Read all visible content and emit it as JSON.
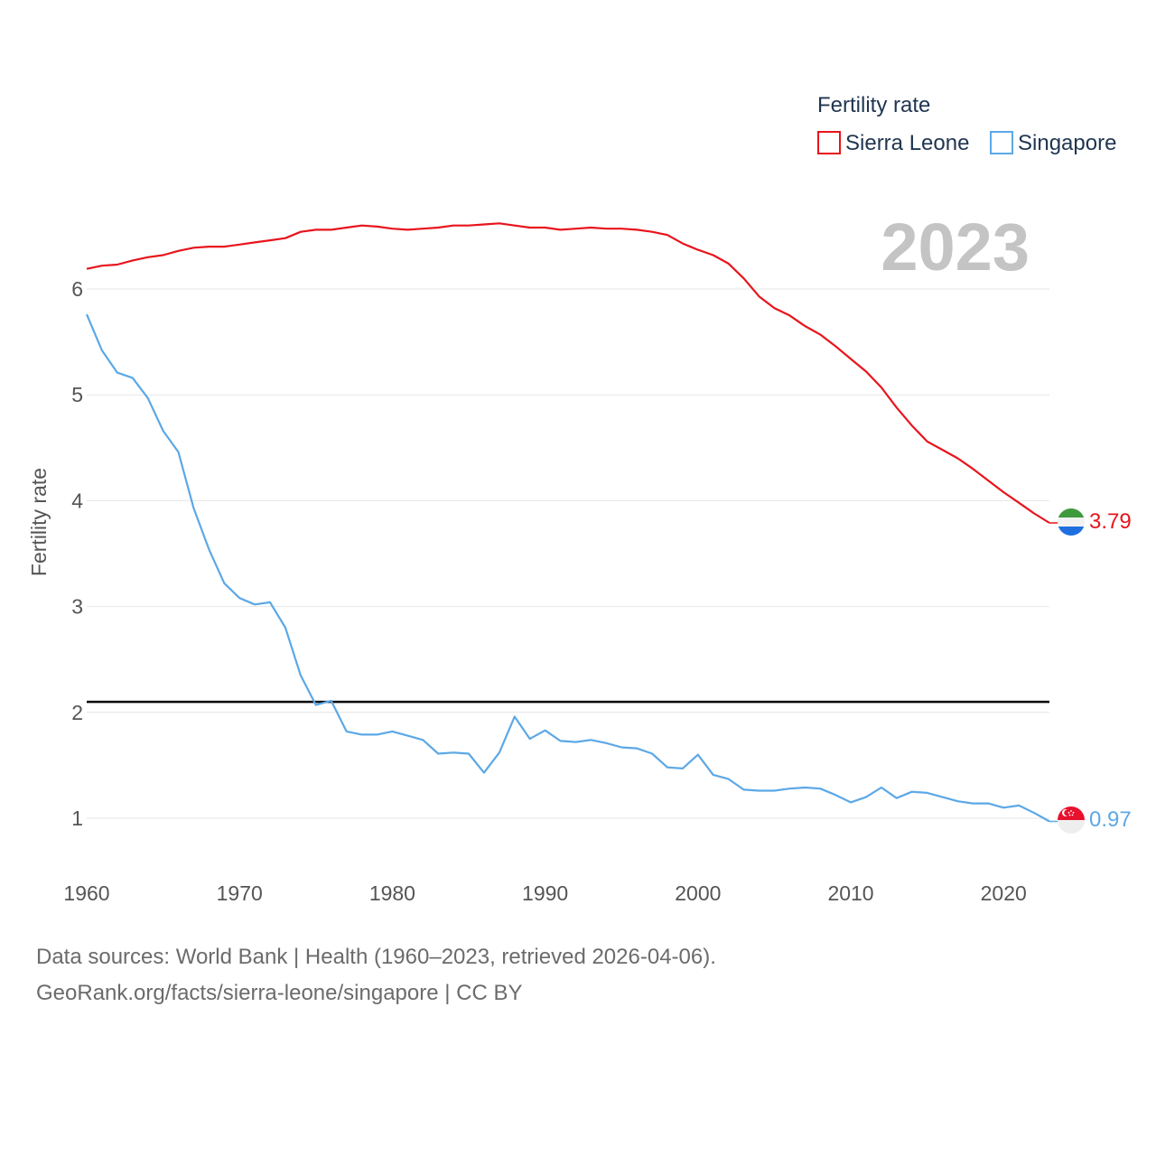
{
  "chart_data": {
    "type": "line",
    "title": "",
    "year_label": "2023",
    "ylabel": "Fertility rate",
    "xlabel": "",
    "xlim": [
      1960,
      2023
    ],
    "ylim": [
      0.65,
      6.7
    ],
    "x_ticks": [
      1960,
      1970,
      1980,
      1990,
      2000,
      2010,
      2020
    ],
    "y_ticks": [
      1,
      2,
      3,
      4,
      5,
      6
    ],
    "grid": true,
    "legend": {
      "title": "Fertility rate",
      "placement": "top-right"
    },
    "reference_line": {
      "y": 2.1,
      "color": "#000000"
    },
    "x": [
      1960,
      1961,
      1962,
      1963,
      1964,
      1965,
      1966,
      1967,
      1968,
      1969,
      1970,
      1971,
      1972,
      1973,
      1974,
      1975,
      1976,
      1977,
      1978,
      1979,
      1980,
      1981,
      1982,
      1983,
      1984,
      1985,
      1986,
      1987,
      1988,
      1989,
      1990,
      1991,
      1992,
      1993,
      1994,
      1995,
      1996,
      1997,
      1998,
      1999,
      2000,
      2001,
      2002,
      2003,
      2004,
      2005,
      2006,
      2007,
      2008,
      2009,
      2010,
      2011,
      2012,
      2013,
      2014,
      2015,
      2016,
      2017,
      2018,
      2019,
      2020,
      2021,
      2022,
      2023
    ],
    "series": [
      {
        "name": "Sierra Leone",
        "color": "#e8141c",
        "end_label": "3.79",
        "flag": "sierra-leone-flag-icon",
        "values": [
          6.19,
          6.22,
          6.23,
          6.27,
          6.3,
          6.32,
          6.36,
          6.39,
          6.4,
          6.4,
          6.42,
          6.44,
          6.46,
          6.48,
          6.54,
          6.56,
          6.56,
          6.58,
          6.6,
          6.59,
          6.57,
          6.56,
          6.57,
          6.58,
          6.6,
          6.6,
          6.61,
          6.62,
          6.6,
          6.58,
          6.58,
          6.56,
          6.57,
          6.58,
          6.57,
          6.57,
          6.56,
          6.54,
          6.51,
          6.43,
          6.37,
          6.32,
          6.24,
          6.1,
          5.93,
          5.82,
          5.75,
          5.65,
          5.57,
          5.46,
          5.34,
          5.22,
          5.07,
          4.88,
          4.71,
          4.56,
          4.48,
          4.4,
          4.3,
          4.19,
          4.08,
          3.98,
          3.88,
          3.79
        ]
      },
      {
        "name": "Singapore",
        "color": "#5ca8e6",
        "end_label": "0.97",
        "flag": "singapore-flag-icon",
        "values": [
          5.76,
          5.42,
          5.21,
          5.16,
          4.97,
          4.66,
          4.46,
          3.93,
          3.54,
          3.22,
          3.08,
          3.02,
          3.04,
          2.8,
          2.35,
          2.07,
          2.11,
          1.82,
          1.79,
          1.79,
          1.82,
          1.78,
          1.74,
          1.61,
          1.62,
          1.61,
          1.43,
          1.62,
          1.96,
          1.75,
          1.83,
          1.73,
          1.72,
          1.74,
          1.71,
          1.67,
          1.66,
          1.61,
          1.48,
          1.47,
          1.6,
          1.41,
          1.37,
          1.27,
          1.26,
          1.26,
          1.28,
          1.29,
          1.28,
          1.22,
          1.15,
          1.2,
          1.29,
          1.19,
          1.25,
          1.24,
          1.2,
          1.16,
          1.14,
          1.14,
          1.1,
          1.12,
          1.05,
          0.97
        ]
      }
    ]
  },
  "footer": {
    "sources_line": "Data sources: World Bank | Health (1960–2023, retrieved 2026-04-06).",
    "url_line": "GeoRank.org/facts/sierra-leone/singapore | CC BY"
  }
}
